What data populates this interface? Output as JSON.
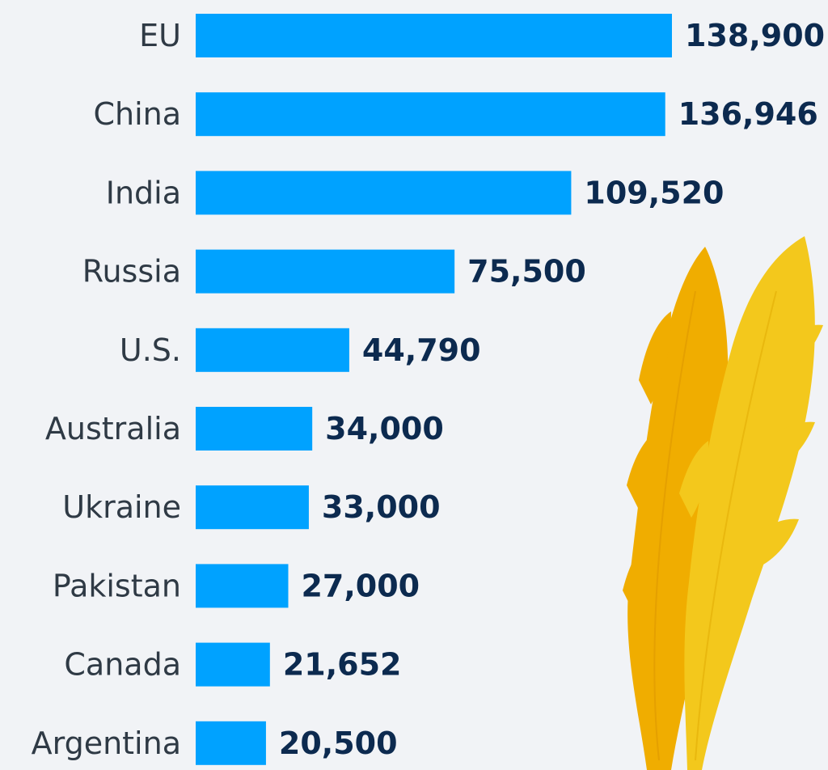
{
  "chart_data": {
    "type": "bar",
    "orientation": "horizontal",
    "categories": [
      "EU",
      "China",
      "India",
      "Russia",
      "U.S.",
      "Australia",
      "Ukraine",
      "Pakistan",
      "Canada",
      "Argentina"
    ],
    "values": [
      138900,
      136946,
      109520,
      75500,
      44790,
      34000,
      33000,
      27000,
      21652,
      20500
    ],
    "value_labels": [
      "138,900",
      "136,946",
      "109,520",
      "75,500",
      "44,790",
      "34,000",
      "33,000",
      "27,000",
      "21,652",
      "20,500"
    ],
    "xlim": [
      0,
      138900
    ],
    "grid": false,
    "legend": "none",
    "colors": {
      "bar": "#00a2ff",
      "value_text": "#0c2a4f",
      "category_text": "#2f3a45",
      "background": "#f1f3f6"
    }
  },
  "illustration": {
    "name": "wheat-ears",
    "colors": [
      "#f0ad00",
      "#f3c81c"
    ]
  }
}
